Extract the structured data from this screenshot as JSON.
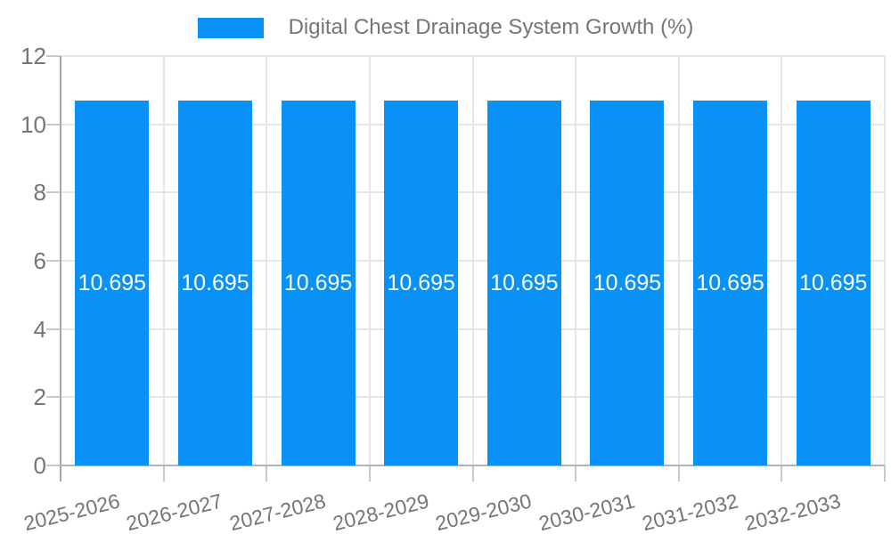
{
  "legend": {
    "label": "Digital Chest Drainage System Growth (%)"
  },
  "chart_data": {
    "type": "bar",
    "title": "Digital Chest Drainage System Growth (%)",
    "categories": [
      "2025-2026",
      "2026-2027",
      "2027-2028",
      "2028-2029",
      "2029-2030",
      "2030-2031",
      "2031-2032",
      "2032-2033"
    ],
    "values": [
      10.695,
      10.695,
      10.695,
      10.695,
      10.695,
      10.695,
      10.695,
      10.695
    ],
    "bar_labels": [
      "10.695",
      "10.695",
      "10.695",
      "10.695",
      "10.695",
      "10.695",
      "10.695",
      "10.695"
    ],
    "xlabel": "",
    "ylabel": "",
    "ylim": [
      0,
      12
    ],
    "yticks": [
      0,
      2,
      4,
      6,
      8,
      10,
      12
    ],
    "grid": true,
    "legend_position": "top-center",
    "bar_color": "#0991f5",
    "bar_label_color": "#ffffff",
    "axis_text_color": "#757575"
  }
}
